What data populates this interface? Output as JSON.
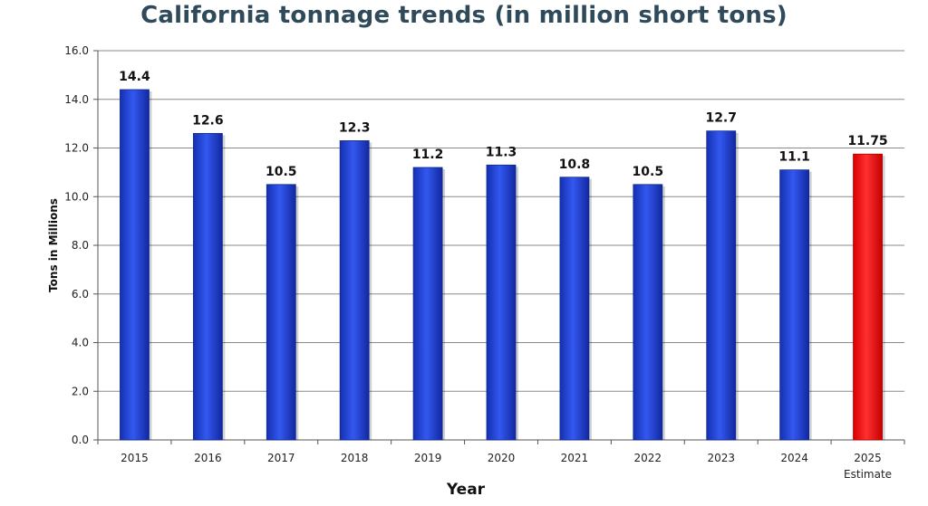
{
  "chart_data": {
    "type": "bar",
    "title": "California tonnage trends (in million short tons)",
    "xlabel": "Year",
    "ylabel": "Tons in Millions",
    "ylim": [
      0,
      16
    ],
    "yticks": [
      "0.0",
      "2.0",
      "4.0",
      "6.0",
      "8.0",
      "10.0",
      "12.0",
      "14.0",
      "16.0"
    ],
    "grid": true,
    "categories": [
      "2015",
      "2016",
      "2017",
      "2018",
      "2019",
      "2020",
      "2021",
      "2022",
      "2023",
      "2024",
      "2025"
    ],
    "category_sublabels": [
      "",
      "",
      "",
      "",
      "",
      "",
      "",
      "",
      "",
      "",
      "Estimate"
    ],
    "values": [
      14.4,
      12.6,
      10.5,
      12.3,
      11.2,
      11.3,
      10.8,
      10.5,
      12.7,
      11.1,
      11.75
    ],
    "value_labels": [
      "14.4",
      "12.6",
      "10.5",
      "12.3",
      "11.2",
      "11.3",
      "10.8",
      "10.5",
      "12.7",
      "11.1",
      "11.75"
    ],
    "bar_colors": [
      "#1f3fd0",
      "#1f3fd0",
      "#1f3fd0",
      "#1f3fd0",
      "#1f3fd0",
      "#1f3fd0",
      "#1f3fd0",
      "#1f3fd0",
      "#1f3fd0",
      "#1f3fd0",
      "#ff1a1a"
    ]
  }
}
